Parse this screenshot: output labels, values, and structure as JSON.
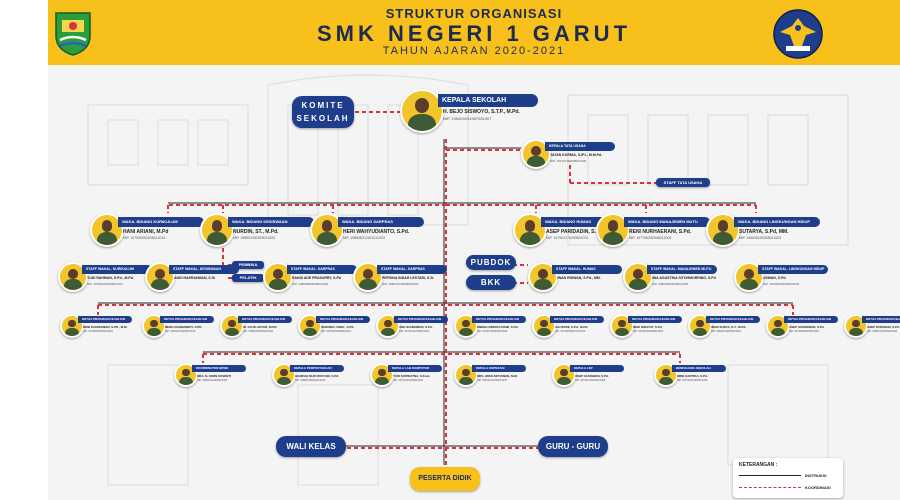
{
  "header": {
    "line1": "STRUKTUR ORGANISASI",
    "line2": "SMK NEGERI 1 GARUT",
    "line3": "TAHUN AJARAN 2020-2021",
    "left_logo": "jawa-barat-emblem-icon",
    "right_logo": "smkn-1-garut-eagle-emblem-icon"
  },
  "head": {
    "role": "KEPALA SEKOLAH",
    "name": "H. BEJO SISWOYO, S.T.P., M.Pd.",
    "nip": "NIP. 196409191987031007"
  },
  "komite": {
    "line1": "KOMITE",
    "line2": "SEKOLAH"
  },
  "tata_usaha": {
    "role": "KEPALA TATA USAHA",
    "name": "YAYAN KURNIA, S.IP.I., M.M.Pd.",
    "nip": "NIP. 197107192005011005",
    "staff_label": "STAFF TATA USAHA"
  },
  "wakasek": [
    {
      "role": "WAKA. BIDANG KURIKULUM",
      "name": "HANI ARIANI, M.Pd",
      "nip": "NIP. 197905052005012013"
    },
    {
      "role": "WAKA. BIDANG KESISWAAN",
      "name": "NURDIN, ST., M.Pd.",
      "nip": "NIP. 198501052009011003"
    },
    {
      "role": "WAKA. BIDANG SARPRAS",
      "name": "HERI WAHYUDIANTO, S.Pd.",
      "nip": "NIP. 198508212011011003"
    },
    {
      "role": "WAKA. BIDANG HUMAS",
      "name": "ASEP PARIDADIN, S.Pd.",
      "nip": "NIP. 197902176200501001"
    },
    {
      "role": "WAKA. BIDANG MANAJEMEN MUTU",
      "name": "RENI NURHAERANI, S.Pd.",
      "nip": "NIP. 197706292005012004"
    },
    {
      "role": "WAKA. BIDANG LINGKUNGAN HIDUP",
      "name": "SUTARYA, S.Pd, MM.",
      "nip": "NIP. 196608152005011003"
    }
  ],
  "staff": [
    {
      "role": "STAFF WAKAL. KURIKULUM",
      "name": "YUDI RAHMAN, S.Pd., M.Pd.",
      "nip": "NIP. 197802232005011011"
    },
    {
      "role": "STAFF WAKAL. KESISWAAN",
      "name": "ANDI HAERAHMAN, S.Si",
      "nip": ""
    },
    {
      "role": "STAFF WAKAL. SARPRAS",
      "name": "RANSI ADE PRASURRY, S.Pd",
      "nip": "NIP. 198508052008011004"
    },
    {
      "role": "STAFF WAKAL. SARPRAS",
      "name": "PEPSINA INDAH LESTARI, S.Si",
      "nip": "NIP. 198607242009012003"
    },
    {
      "role": "STAFF WAKAL. HUMAS",
      "name": "IWAN RIDWAN, S.Pd., MM.",
      "nip": ""
    },
    {
      "role": "STAFF WAKAL. MANAJEMEN MUTU",
      "name": "IWA AGUSTINA SITOHMORRING, S.Pd",
      "nip": "NIP. 198203052009012005"
    },
    {
      "role": "STAFF WAKAL. LINGKUNGAN HIDUP",
      "name": "USMAN, S.Pd.",
      "nip": "NIP. 197904252006041004"
    }
  ],
  "side_labels": {
    "pembina": "PEMBINA",
    "pelatih": "PELATIH"
  },
  "pubdok": "PUBDOK",
  "bkk": "BKK",
  "kaprog": [
    {
      "role": "KETUA PROGRAM KEAHLIAN",
      "name": "DENI KURNIAWAN, S.PD., M.M.",
      "nip": "NIP. 197905262005011010"
    },
    {
      "role": "KETUA PROGRAM KEAHLIAN",
      "name": "NENG RAHMAWATI, S.PD.",
      "nip": "NIP. 198102102008012013"
    },
    {
      "role": "KETUA PROGRAM KEAHLIAN",
      "name": "ID. FAUZI ARYAN, M.PD.",
      "nip": "NIP. 198002052009012001"
    },
    {
      "role": "KETUA PROGRAM KEAHLIAN",
      "name": "SUKISNO, SSIKI., S.Pd.",
      "nip": "NIP. 197606022009011001"
    },
    {
      "role": "KETUA PROGRAM KEAHLIAN",
      "name": "ADE SUHERMAN, S.Pd.",
      "nip": "NIP. 197904112006041004"
    },
    {
      "role": "KETUA PROGRAM KEAHLIAN",
      "name": "ENENG INDRIYA DEWI, S.Pd.",
      "nip": "NIP. 197804192005012006"
    },
    {
      "role": "KETUA PROGRAM KEAHLIAN",
      "name": "AGUSTINI, S.Pd., M.Pd.",
      "nip": "NIP. 197108252007012010"
    },
    {
      "role": "KETUA PROGRAM KEAHLIAN",
      "name": "DEDI HIDAYAT, S.Pd.",
      "nip": "NIP. 197609142008011004"
    },
    {
      "role": "KETUA PROGRAM KEAHLIAN",
      "name": "IMAN SURYA, S.T., M.Pd.",
      "nip": "NIP. 198201092009011004"
    },
    {
      "role": "KETUA PROGRAM KEAHLIAN",
      "name": "ASEP SUHERMAN, S.Pd.",
      "nip": "NIP. 197405262006041007"
    },
    {
      "role": "KETUA PROGRAM KEAHLIAN",
      "name": "ASEP KURNIADI, S.Pd.",
      "nip": "NIP. 198004122009011003"
    }
  ],
  "support": [
    {
      "role": "KOORDINATOR BP/BK",
      "name": "DRA. N. KIKIN SUSENTI",
      "nip": "NIP. 196604141994032005"
    },
    {
      "role": "KEPALA PERPUSTAKAAN",
      "name": "HANIFAH NUR ROSYADI, S.Pd.",
      "nip": "NIP. 198803182010012015"
    },
    {
      "role": "KEPALA LAB KOMPUTER",
      "name": "YUDI SUPRIATNA, S.Kom.",
      "nip": "NIP. 197910032009011002"
    },
    {
      "role": "KEPALA KOPERASI",
      "name": "DRS. IWAN SETIAWAN, M.M.",
      "nip": "NIP. 196411011994031005"
    },
    {
      "role": "KEPALA LSP",
      "name": "USEP GUNAWAN, S.Pd.",
      "nip": "NIP. 197402152006041009"
    },
    {
      "role": "BENDAHARA SEKOLAH",
      "name": "ERNI KARTIKA, S.Pd.",
      "nip": "NIP. 197709012008012008"
    }
  ],
  "bottom": {
    "wali": "WALI KELAS",
    "guru": "GURU - GURU",
    "siswa": "PESERTA DIDIK"
  },
  "legend": {
    "title": "KETERANGAN :",
    "instruksi": "INSTRUKSI",
    "koordinasi": "KOORDINASI"
  },
  "colors": {
    "header": "#f8c01a",
    "pill": "#1e3e8c",
    "koordinasi": "#d8323a",
    "instruksi": "#222222"
  }
}
